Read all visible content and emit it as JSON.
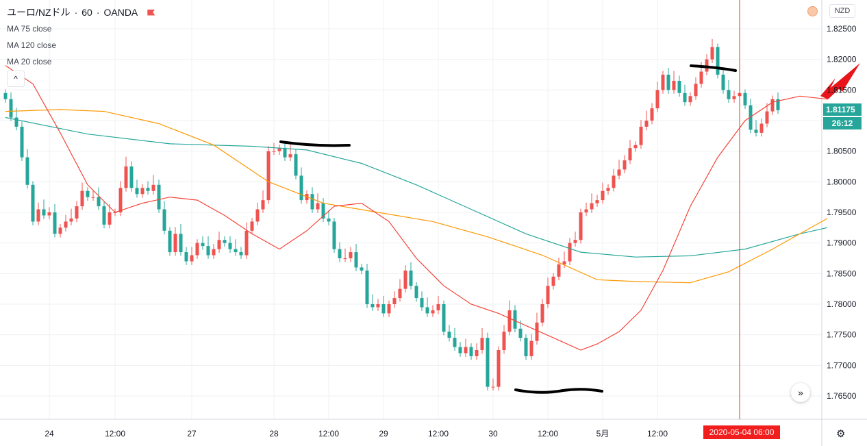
{
  "header": {
    "symbol": "ユーロ/NZドル",
    "interval": "60",
    "source": "OANDA",
    "separator": "·"
  },
  "indicators": [
    {
      "label": "MA 75 close",
      "color": "#26a69a"
    },
    {
      "label": "MA 120 close",
      "color": "#ff9800"
    },
    {
      "label": "MA 20 close",
      "color": "#f44336"
    }
  ],
  "currency_label": "NZD",
  "last_price_label": "1.81175",
  "countdown_label": "26:12",
  "crosshair_time_label": "2020-05-04 06:00",
  "colors": {
    "up": "#ef5350",
    "down": "#26a69a",
    "grid": "#eef0f3",
    "crosshair": "#e53935",
    "annotation": "#000000",
    "arrow": "#e8161b"
  },
  "chart_data": {
    "type": "candlestick",
    "title": "ユーロ/NZドル · 60 · OANDA",
    "x_tick_labels": [
      {
        "label": "24",
        "bar": 8
      },
      {
        "label": "12:00",
        "bar": 20
      },
      {
        "label": "27",
        "bar": 34
      },
      {
        "label": "28",
        "bar": 49
      },
      {
        "label": "12:00",
        "bar": 59
      },
      {
        "label": "29",
        "bar": 69
      },
      {
        "label": "12:00",
        "bar": 79
      },
      {
        "label": "30",
        "bar": 89
      },
      {
        "label": "12:00",
        "bar": 99
      },
      {
        "label": "5月",
        "bar": 109
      },
      {
        "label": "12:00",
        "bar": 119
      },
      {
        "label": "2020-05-04 06:00",
        "bar": 134
      }
    ],
    "y_ticks": [
      "1.82500",
      "1.82000",
      "1.81500",
      "1.81000",
      "1.80500",
      "1.80000",
      "1.79500",
      "1.79000",
      "1.78500",
      "1.78000",
      "1.77500",
      "1.77000",
      "1.76500"
    ],
    "ylim": [
      1.7625,
      1.8275
    ],
    "last_price": 1.81175,
    "crosshair_bar": 134,
    "close": [
      1.8135,
      1.8105,
      1.809,
      1.804,
      1.7995,
      1.7935,
      1.7955,
      1.7945,
      1.795,
      1.7915,
      1.7925,
      1.7935,
      1.794,
      1.796,
      1.7985,
      1.7975,
      1.7975,
      1.796,
      1.793,
      1.795,
      1.795,
      1.799,
      1.8025,
      1.799,
      1.798,
      1.799,
      1.7985,
      1.7995,
      1.7955,
      1.792,
      1.7885,
      1.7915,
      1.7885,
      1.787,
      1.788,
      1.79,
      1.7895,
      1.788,
      1.789,
      1.7905,
      1.79,
      1.789,
      1.7885,
      1.788,
      1.792,
      1.7935,
      1.7955,
      1.797,
      1.805,
      1.805,
      1.8055,
      1.804,
      1.8045,
      1.801,
      1.797,
      1.798,
      1.7955,
      1.7965,
      1.794,
      1.7935,
      1.789,
      1.7875,
      1.7875,
      1.7885,
      1.786,
      1.7855,
      1.78,
      1.7795,
      1.78,
      1.7785,
      1.78,
      1.781,
      1.7825,
      1.7855,
      1.783,
      1.781,
      1.7795,
      1.7785,
      1.779,
      1.78,
      1.7755,
      1.7745,
      1.773,
      1.772,
      1.773,
      1.7715,
      1.7725,
      1.7745,
      1.7665,
      1.7665,
      1.7725,
      1.7755,
      1.779,
      1.776,
      1.7745,
      1.7715,
      1.774,
      1.777,
      1.78,
      1.783,
      1.7845,
      1.7865,
      1.787,
      1.79,
      1.7905,
      1.795,
      1.7955,
      1.7965,
      1.797,
      1.7985,
      1.799,
      1.801,
      1.802,
      1.8035,
      1.8055,
      1.806,
      1.809,
      1.81,
      1.812,
      1.815,
      1.8175,
      1.815,
      1.8165,
      1.8145,
      1.813,
      1.814,
      1.816,
      1.818,
      1.82,
      1.822,
      1.8175,
      1.815,
      1.8135,
      1.814,
      1.8145,
      1.8125,
      1.8085,
      1.808,
      1.8095,
      1.8115,
      1.8135,
      1.8117
    ],
    "ma_series": [
      {
        "label": "MA 75 close",
        "color": "#26a69a",
        "points": [
          [
            0,
            1.8105
          ],
          [
            15,
            1.8078
          ],
          [
            30,
            1.8062
          ],
          [
            45,
            1.8058
          ],
          [
            55,
            1.8052
          ],
          [
            65,
            1.803
          ],
          [
            75,
            1.7995
          ],
          [
            85,
            1.7955
          ],
          [
            95,
            1.7915
          ],
          [
            105,
            1.7885
          ],
          [
            115,
            1.7877
          ],
          [
            125,
            1.7879
          ],
          [
            135,
            1.789
          ],
          [
            145,
            1.7915
          ],
          [
            150,
            1.7925
          ]
        ]
      },
      {
        "label": "MA 120 close",
        "color": "#ff9800",
        "points": [
          [
            0,
            1.8115
          ],
          [
            10,
            1.8118
          ],
          [
            18,
            1.8115
          ],
          [
            28,
            1.8095
          ],
          [
            38,
            1.806
          ],
          [
            48,
            1.8
          ],
          [
            58,
            1.7965
          ],
          [
            68,
            1.795
          ],
          [
            78,
            1.7935
          ],
          [
            88,
            1.791
          ],
          [
            98,
            1.788
          ],
          [
            108,
            1.784
          ],
          [
            115,
            1.7837
          ],
          [
            125,
            1.7835
          ],
          [
            132,
            1.7853
          ],
          [
            140,
            1.789
          ],
          [
            150,
            1.794
          ]
        ]
      },
      {
        "label": "MA 20 close",
        "color": "#f44336",
        "points": [
          [
            0,
            1.819
          ],
          [
            5,
            1.816
          ],
          [
            10,
            1.808
          ],
          [
            15,
            1.7995
          ],
          [
            20,
            1.795
          ],
          [
            25,
            1.7965
          ],
          [
            30,
            1.7975
          ],
          [
            35,
            1.797
          ],
          [
            40,
            1.7945
          ],
          [
            45,
            1.7915
          ],
          [
            50,
            1.789
          ],
          [
            55,
            1.792
          ],
          [
            60,
            1.796
          ],
          [
            65,
            1.7965
          ],
          [
            70,
            1.7935
          ],
          [
            75,
            1.7875
          ],
          [
            80,
            1.783
          ],
          [
            85,
            1.78
          ],
          [
            90,
            1.7785
          ],
          [
            95,
            1.7765
          ],
          [
            100,
            1.7745
          ],
          [
            105,
            1.7725
          ],
          [
            108,
            1.7735
          ],
          [
            112,
            1.7755
          ],
          [
            116,
            1.779
          ],
          [
            120,
            1.7855
          ],
          [
            125,
            1.796
          ],
          [
            130,
            1.804
          ],
          [
            135,
            1.81
          ],
          [
            140,
            1.813
          ],
          [
            145,
            1.814
          ],
          [
            150,
            1.8135
          ]
        ]
      }
    ]
  }
}
